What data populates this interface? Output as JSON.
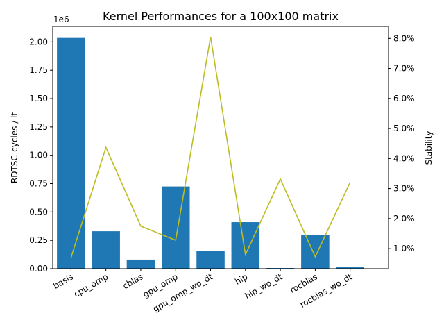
{
  "chart_data": {
    "type": "bar",
    "title": "Kernel Performances for a 100x100 matrix",
    "categories": [
      "basis",
      "cpu_omp",
      "cblas",
      "gpu_omp",
      "gpu_omp_wo_dt",
      "hip",
      "hip_wo_dt",
      "rocblas",
      "rocblas_wo_dt"
    ],
    "series": [
      {
        "values": [
          2035000,
          330000,
          80000,
          725000,
          155000,
          410000,
          6000,
          295000,
          12000
        ],
        "axis": "left",
        "kind": "bar",
        "color": "#1f77b4"
      },
      {
        "values": [
          0.7,
          4.37,
          1.75,
          1.28,
          8.05,
          0.8,
          3.32,
          0.73,
          3.21
        ],
        "axis": "right",
        "kind": "line",
        "color": "#bcbd22"
      }
    ],
    "ylabel": "RDTSC-cycles / it",
    "y_offset_label": "1e6",
    "ylim": [
      0,
      2.137
    ],
    "yticks": [
      "0.00",
      "0.25",
      "0.50",
      "0.75",
      "1.00",
      "1.25",
      "1.50",
      "1.75",
      "2.00"
    ],
    "y2label": "Stability",
    "y2lim": [
      0.333,
      8.4
    ],
    "y2ticks": [
      "1.0%",
      "2.0%",
      "3.0%",
      "4.0%",
      "5.0%",
      "6.0%",
      "7.0%",
      "8.0%"
    ],
    "grid": false,
    "legend": "none"
  }
}
